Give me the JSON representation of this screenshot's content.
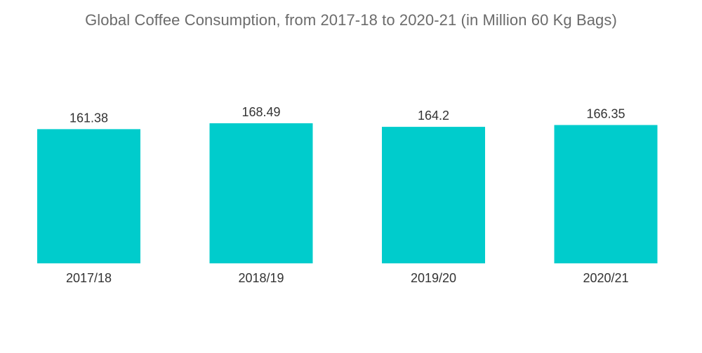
{
  "chart_data": {
    "type": "bar",
    "title": "Global Coffee Consumption, from 2017-18 to 2020-21 (in Million 60 Kg Bags)",
    "categories": [
      "2017/18",
      "2018/19",
      "2019/20",
      "2020/21"
    ],
    "values": [
      161.38,
      168.49,
      164.2,
      166.35
    ],
    "value_labels": [
      "161.38",
      "168.49",
      "164.2",
      "166.35"
    ],
    "xlabel": "",
    "ylabel": "",
    "ylim": [
      0,
      168.49
    ],
    "grid": false,
    "legend": "none",
    "bar_color": "#00cccc",
    "label_color": "#333333",
    "title_color": "#6b6b6b"
  }
}
